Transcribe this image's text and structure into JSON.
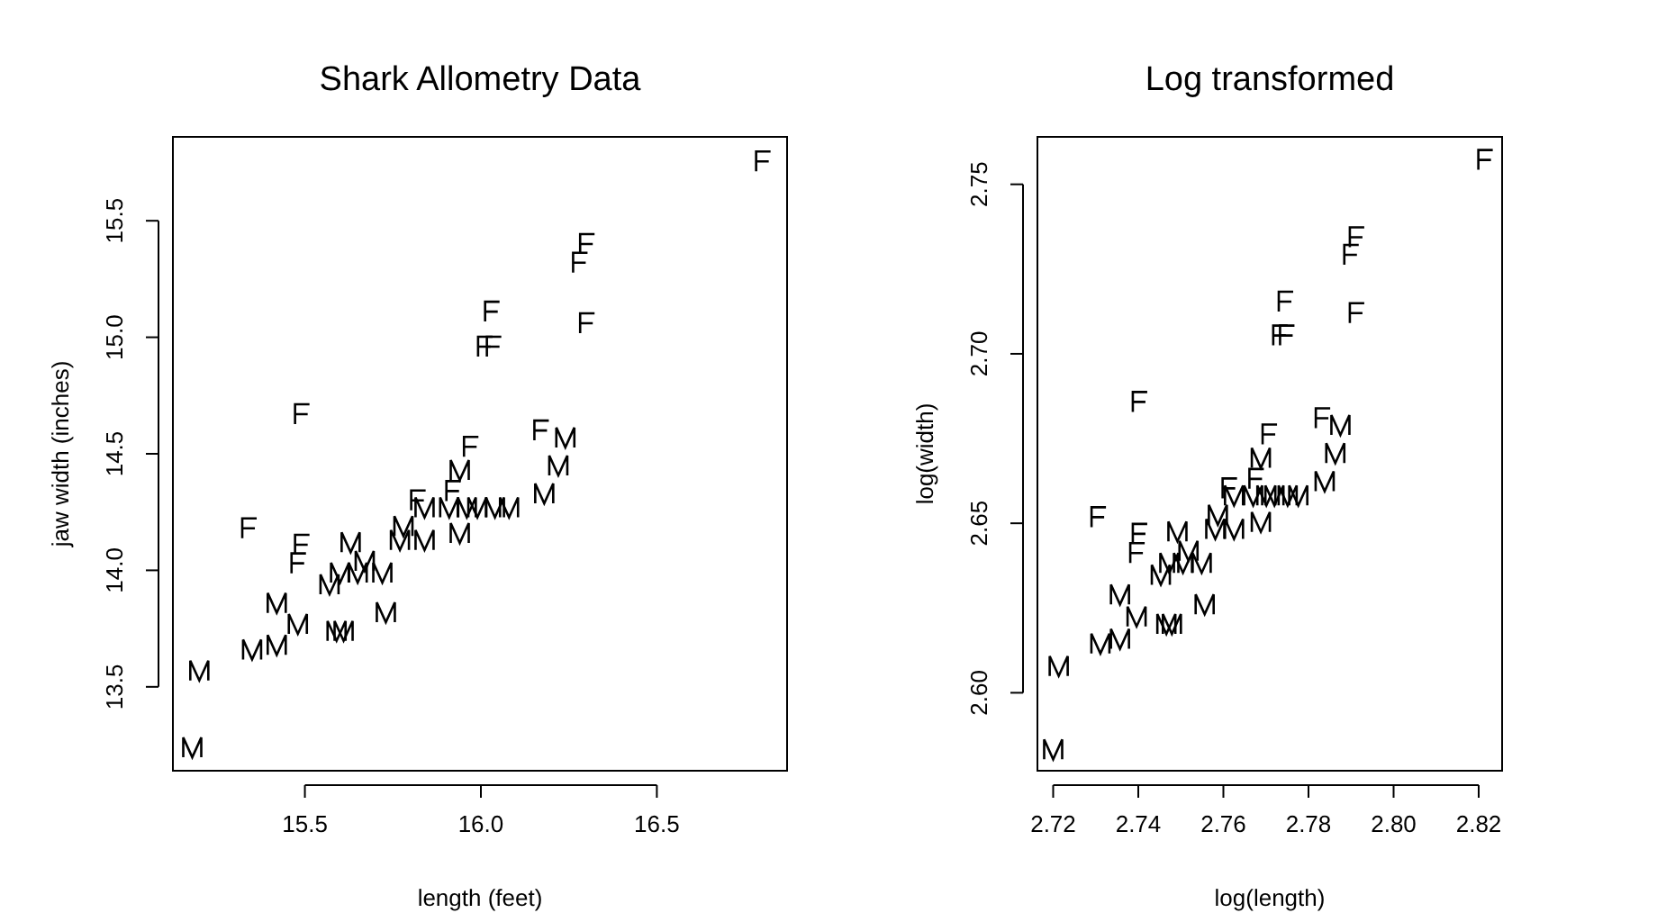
{
  "chart_data": [
    {
      "type": "scatter",
      "title": "Shark Allometry Data",
      "xlabel": "length (feet)",
      "ylabel": "jaw width (inches)",
      "xlim": [
        15.125,
        16.87
      ],
      "ylim": [
        13.14,
        15.86
      ],
      "xticks": [
        {
          "value": 15.5,
          "label": "15.5"
        },
        {
          "value": 16,
          "label": "16.0"
        },
        {
          "value": 16.5,
          "label": "16.5"
        }
      ],
      "yticks": [
        {
          "value": 13.5,
          "label": "13.5"
        },
        {
          "value": 14,
          "label": "14.0"
        },
        {
          "value": 14.5,
          "label": "14.5"
        },
        {
          "value": 15,
          "label": "15.0"
        },
        {
          "value": 15.5,
          "label": "15.5"
        }
      ],
      "series": [
        {
          "color": "#000000",
          "x": [
            16.8,
            16.3,
            16.28,
            16.03,
            16.3,
            16.01,
            16.035,
            15.49,
            16.17,
            15.97,
            15.82,
            15.92,
            15.34,
            15.49,
            15.48
          ],
          "values": [
            15.755,
            15.4,
            15.32,
            15.11,
            15.06,
            14.96,
            14.96,
            14.67,
            14.6,
            14.53,
            14.3,
            14.34,
            14.18,
            14.11,
            14.03
          ]
        },
        {
          "color": "#000000",
          "x": [
            16.24,
            16.22,
            15.94,
            16.18,
            15.84,
            15.91,
            15.96,
            15.99,
            16.04,
            16.08,
            15.78,
            15.77,
            15.84,
            15.94,
            15.63,
            15.67,
            15.6,
            15.65,
            15.72,
            15.57,
            15.42,
            15.48,
            15.73,
            15.59,
            15.61,
            15.35,
            15.42,
            15.2,
            15.18
          ],
          "values": [
            14.57,
            14.45,
            14.43,
            14.33,
            14.27,
            14.27,
            14.27,
            14.27,
            14.27,
            14.27,
            14.19,
            14.13,
            14.13,
            14.16,
            14.12,
            14.04,
            13.99,
            13.99,
            13.99,
            13.94,
            13.86,
            13.77,
            13.82,
            13.74,
            13.74,
            13.66,
            13.68,
            13.57,
            13.24
          ]
        }
      ]
    },
    {
      "type": "scatter",
      "title": "Log transformed",
      "xlabel": "log(length)",
      "ylabel": "log(width)",
      "xlim": [
        2.7163,
        2.8255
      ],
      "ylim": [
        2.577,
        2.764
      ],
      "xticks": [
        {
          "value": 2.72,
          "label": "2.72"
        },
        {
          "value": 2.74,
          "label": "2.74"
        },
        {
          "value": 2.76,
          "label": "2.76"
        },
        {
          "value": 2.78,
          "label": "2.78"
        },
        {
          "value": 2.8,
          "label": "2.80"
        },
        {
          "value": 2.82,
          "label": "2.82"
        }
      ],
      "yticks": [
        {
          "value": 2.6,
          "label": "2.60"
        },
        {
          "value": 2.65,
          "label": "2.65"
        },
        {
          "value": 2.7,
          "label": "2.70"
        },
        {
          "value": 2.75,
          "label": "2.75"
        }
      ],
      "series": [
        {
          "color": "#000000",
          "x": [
            2.8214,
            2.7912,
            2.7899,
            2.7745,
            2.7912,
            2.7732,
            2.7748,
            2.7402,
            2.7832,
            2.7707,
            2.7613,
            2.7676,
            2.7305,
            2.7402,
            2.7396
          ],
          "values": [
            2.7572,
            2.7344,
            2.7292,
            2.7154,
            2.712,
            2.7054,
            2.7054,
            2.6858,
            2.681,
            2.6762,
            2.6603,
            2.6631,
            2.6518,
            2.6469,
            2.6412
          ]
        },
        {
          "color": "#000000",
          "x": [
            2.7875,
            2.7863,
            2.7688,
            2.7838,
            2.7625,
            2.767,
            2.7701,
            2.772,
            2.7751,
            2.7776,
            2.7587,
            2.7581,
            2.7625,
            2.7688,
            2.7492,
            2.7518,
            2.7473,
            2.7505,
            2.7549,
            2.7453,
            2.7357,
            2.7396,
            2.7556,
            2.7466,
            2.7479,
            2.7311,
            2.7357,
            2.7213,
            2.72
          ],
          "values": [
            2.679,
            2.6707,
            2.6693,
            2.6624,
            2.6582,
            2.6582,
            2.6582,
            2.6582,
            2.6582,
            2.6582,
            2.6525,
            2.6483,
            2.6483,
            2.6504,
            2.6476,
            2.6419,
            2.6383,
            2.6383,
            2.6383,
            2.6348,
            2.629,
            2.6225,
            2.6261,
            2.6203,
            2.6203,
            2.6145,
            2.6159,
            2.6079,
            2.5833
          ]
        }
      ]
    }
  ]
}
